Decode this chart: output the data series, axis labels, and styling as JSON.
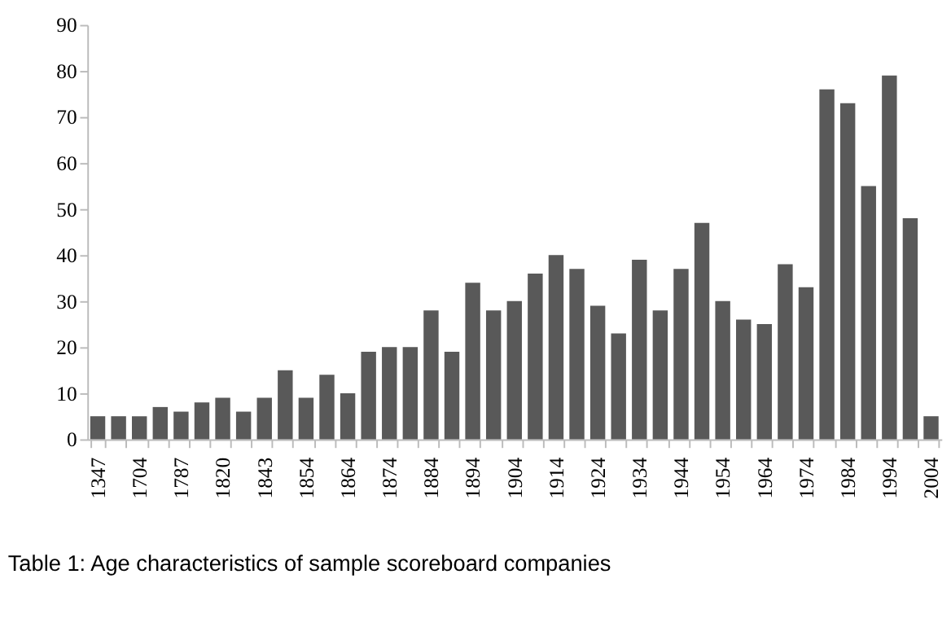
{
  "chart_data": {
    "type": "bar",
    "categories": [
      "1347",
      null,
      "1704",
      null,
      "1787",
      null,
      "1820",
      null,
      "1843",
      null,
      "1854",
      null,
      "1864",
      null,
      "1874",
      null,
      "1884",
      null,
      "1894",
      null,
      "1904",
      null,
      "1914",
      null,
      "1924",
      null,
      "1934",
      null,
      "1944",
      null,
      "1954",
      null,
      "1964",
      null,
      "1974",
      null,
      "1984",
      null,
      "1994",
      null,
      "2004"
    ],
    "values": [
      5,
      5,
      5,
      7,
      6,
      8,
      9,
      6,
      9,
      15,
      9,
      14,
      10,
      19,
      20,
      20,
      28,
      19,
      34,
      28,
      30,
      36,
      40,
      37,
      29,
      23,
      39,
      28,
      37,
      47,
      30,
      26,
      25,
      38,
      33,
      76,
      73,
      55,
      79,
      48,
      5
    ],
    "color": "#595959",
    "ylim": [
      0,
      90
    ],
    "yticks": [
      0,
      10,
      20,
      30,
      40,
      50,
      60,
      70,
      80,
      90
    ],
    "grid": false,
    "annotations": [
      "Table 1: Age characteristics of sample scoreboard companies"
    ]
  }
}
